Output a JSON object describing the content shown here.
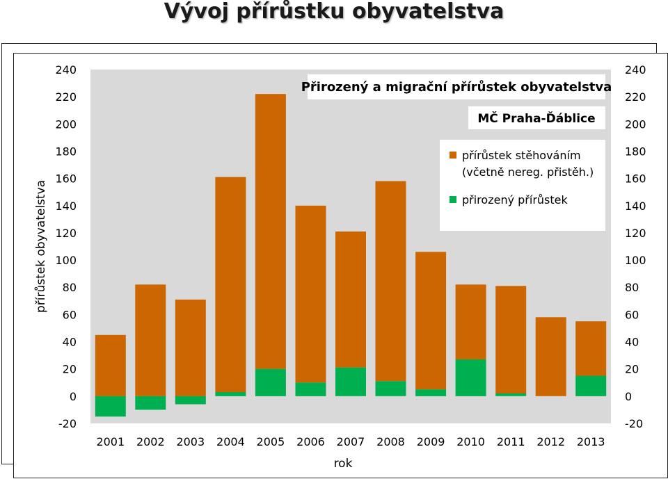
{
  "slide": {
    "title": "Vývoj přírůstku obyvatelstva"
  },
  "chart_data": {
    "type": "bar",
    "stacked": true,
    "title": "Přirozený a migrační přírůstek obyvatelstva",
    "subtitle": "MČ Praha-Ďáblice",
    "xlabel": "rok",
    "ylabel": "přírůstek obyvatelstva",
    "ylim": [
      -20,
      240
    ],
    "ytick_step": 20,
    "yticks": [
      "-20",
      "0",
      "20",
      "40",
      "60",
      "80",
      "100",
      "120",
      "140",
      "160",
      "180",
      "200",
      "220",
      "240"
    ],
    "secondary_axis": true,
    "grid": false,
    "plot_background": "#d9d9d9",
    "legend_position": "top-right",
    "categories": [
      "2001",
      "2002",
      "2003",
      "2004",
      "2005",
      "2006",
      "2007",
      "2008",
      "2009",
      "2010",
      "2011",
      "2012",
      "2013"
    ],
    "series": [
      {
        "name": "přirozený přírůstek",
        "color": "#00b050",
        "values": [
          -15,
          -10,
          -6,
          3,
          20,
          10,
          21,
          11,
          5,
          27,
          2,
          0,
          15
        ]
      },
      {
        "name": "přírůstek stěhováním\n(včetně nereg. přistěh.)",
        "color": "#cc6600",
        "values": [
          45,
          82,
          71,
          158,
          202,
          130,
          100,
          147,
          101,
          55,
          79,
          58,
          40
        ]
      }
    ]
  }
}
